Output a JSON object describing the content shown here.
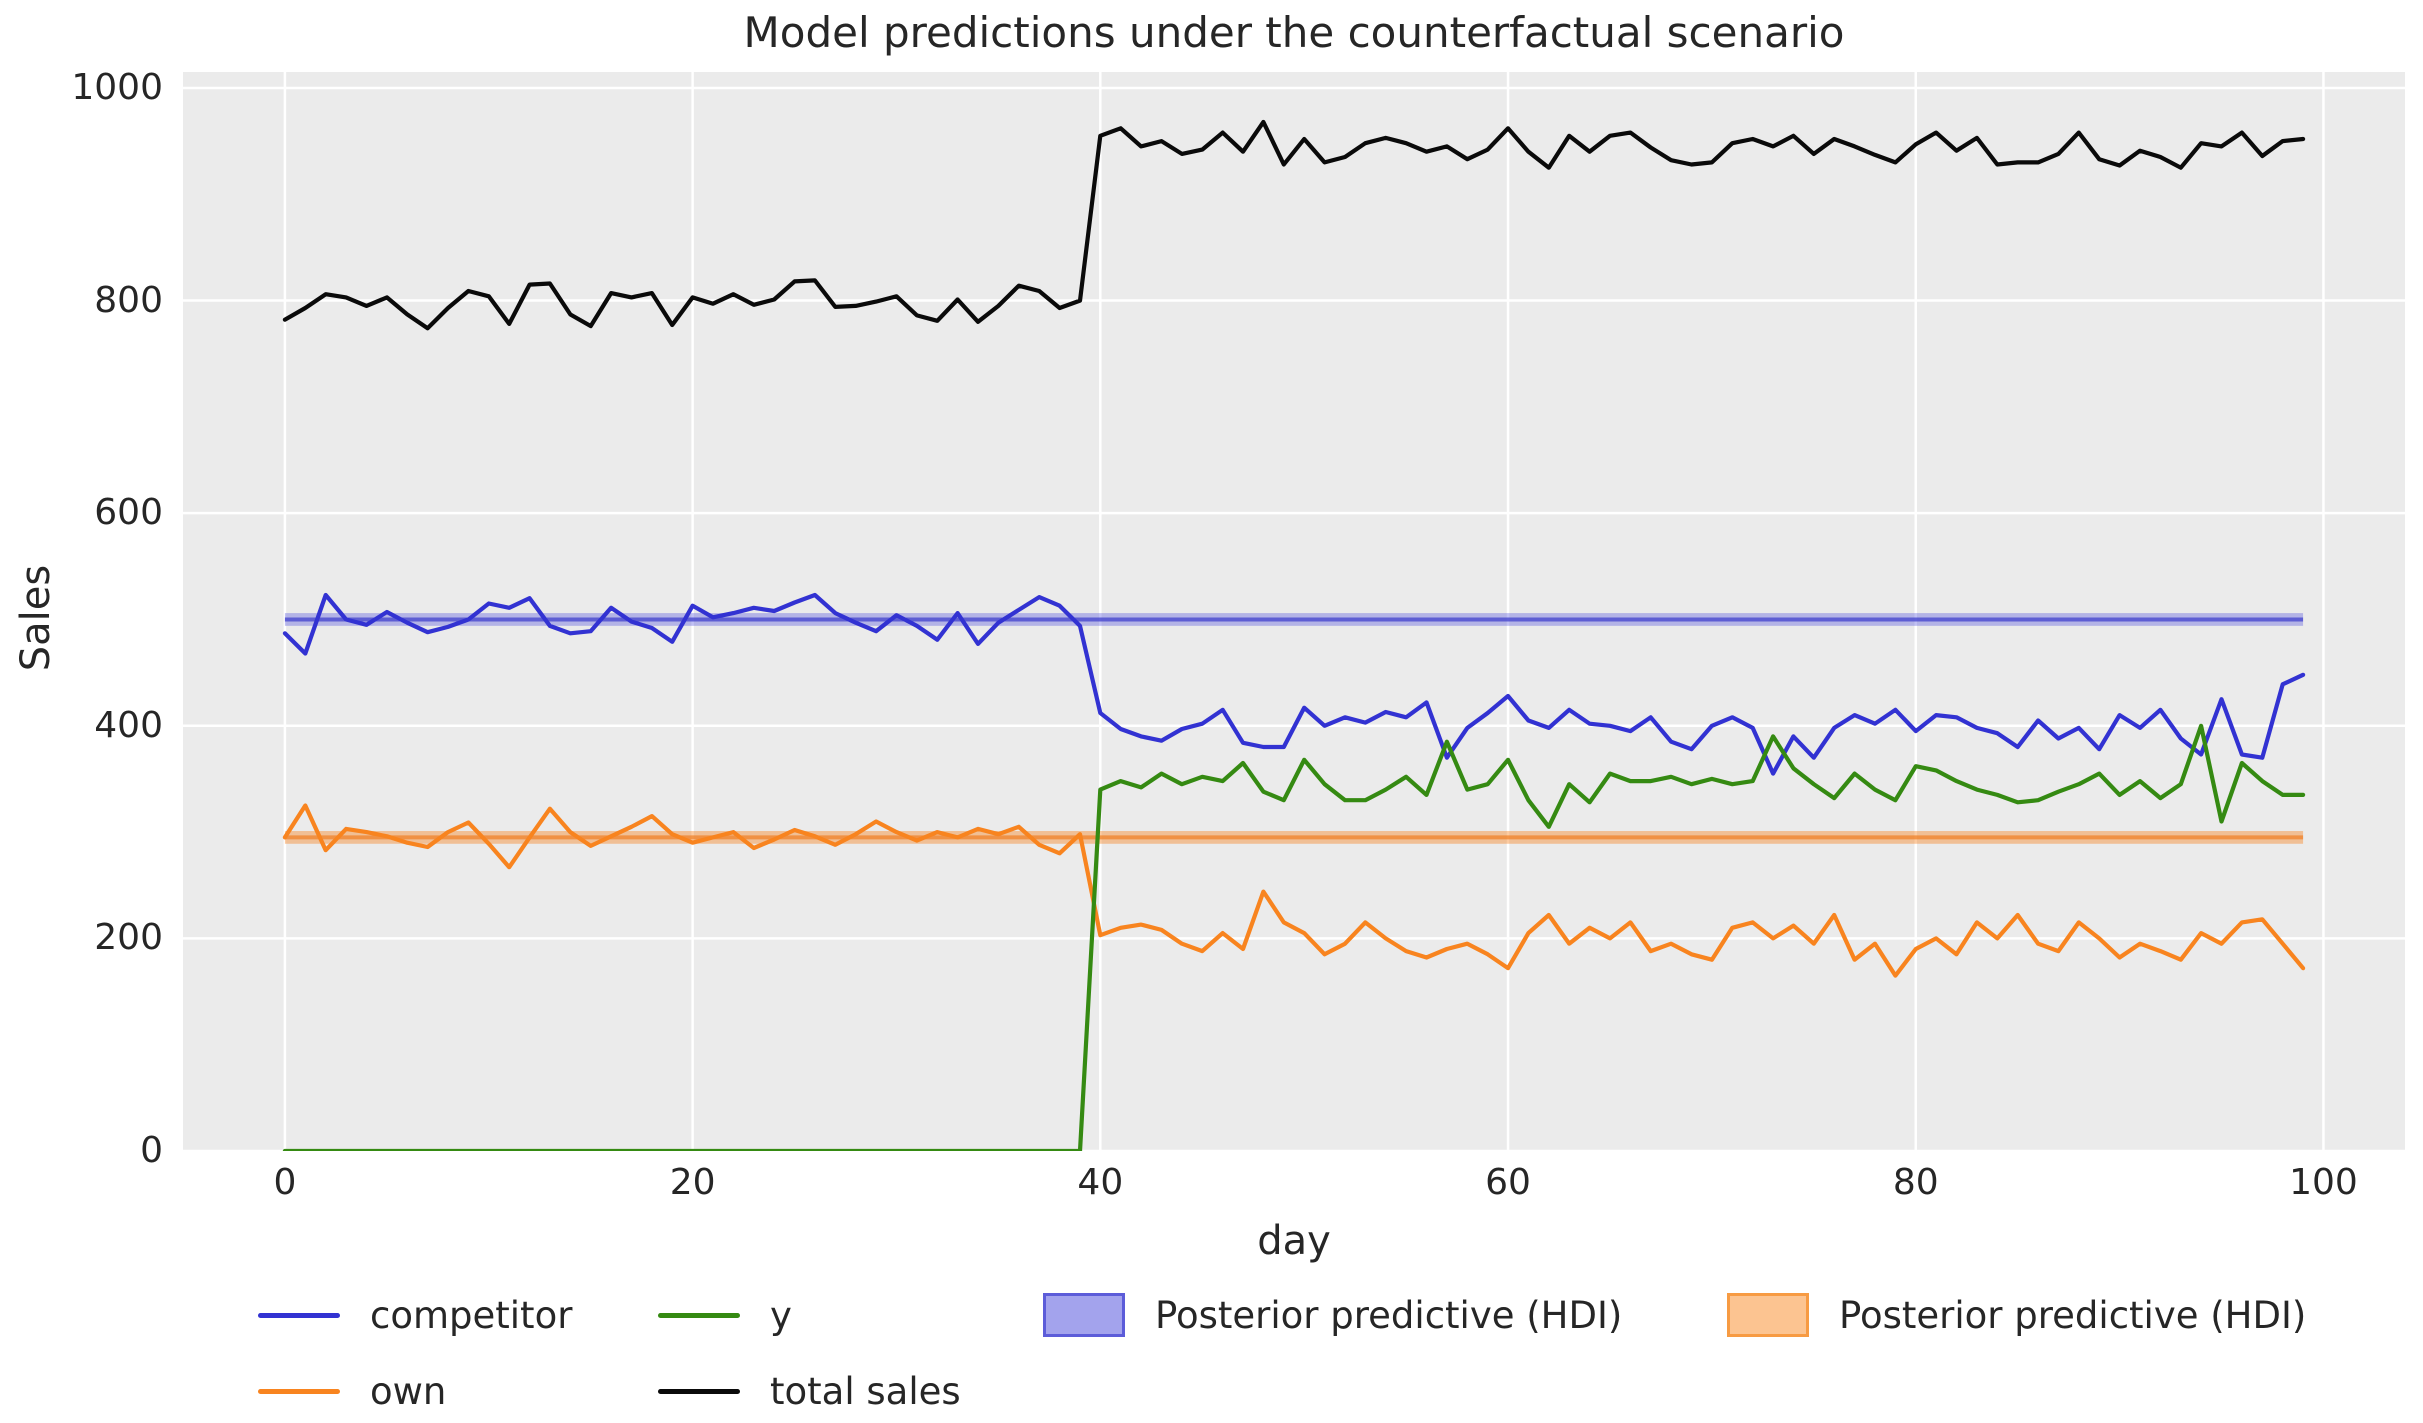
{
  "figure": {
    "background": "#ffffff",
    "plot_background": "#ebebeb",
    "grid_color": "#ffffff",
    "text_color": "#262626"
  },
  "chart_data": {
    "type": "line",
    "title": "Model predictions under the counterfactual scenario",
    "xlabel": "day",
    "ylabel": "Sales",
    "grid": true,
    "legend_position": "below",
    "xlim": [
      -5,
      104
    ],
    "ylim": [
      0,
      1015
    ],
    "x_ticks": [
      0,
      20,
      40,
      60,
      80,
      100
    ],
    "y_ticks": [
      0,
      200,
      400,
      600,
      800,
      1000
    ],
    "x": [
      0,
      1,
      2,
      3,
      4,
      5,
      6,
      7,
      8,
      9,
      10,
      11,
      12,
      13,
      14,
      15,
      16,
      17,
      18,
      19,
      20,
      21,
      22,
      23,
      24,
      25,
      26,
      27,
      28,
      29,
      30,
      31,
      32,
      33,
      34,
      35,
      36,
      37,
      38,
      39,
      40,
      41,
      42,
      43,
      44,
      45,
      46,
      47,
      48,
      49,
      50,
      51,
      52,
      53,
      54,
      55,
      56,
      57,
      58,
      59,
      60,
      61,
      62,
      63,
      64,
      65,
      66,
      67,
      68,
      69,
      70,
      71,
      72,
      73,
      74,
      75,
      76,
      77,
      78,
      79,
      80,
      81,
      82,
      83,
      84,
      85,
      86,
      87,
      88,
      89,
      90,
      91,
      92,
      93,
      94,
      95,
      96,
      97,
      98,
      99
    ],
    "series": [
      {
        "name": "competitor",
        "color": "#3232d2",
        "line_width": 4.2,
        "values": [
          487,
          468,
          523,
          500,
          495,
          507,
          497,
          488,
          493,
          500,
          515,
          511,
          520,
          494,
          487,
          489,
          511,
          498,
          492,
          479,
          513,
          502,
          506,
          511,
          508,
          516,
          523,
          506,
          497,
          489,
          504,
          494,
          481,
          506,
          477,
          497,
          509,
          521,
          513,
          494,
          412,
          397,
          390,
          386,
          397,
          402,
          415,
          384,
          380,
          380,
          417,
          400,
          408,
          403,
          413,
          408,
          422,
          370,
          398,
          412,
          428,
          405,
          398,
          415,
          402,
          400,
          395,
          408,
          385,
          378,
          400,
          408,
          398,
          355,
          390,
          370,
          398,
          410,
          402,
          415,
          395,
          410,
          408,
          398,
          393,
          380,
          405,
          388,
          398,
          378,
          410,
          398,
          415,
          388,
          373,
          425,
          373,
          370,
          439,
          448
        ]
      },
      {
        "name": "own",
        "color": "#f8841f",
        "line_width": 4.2,
        "values": [
          295,
          325,
          283,
          303,
          300,
          296,
          290,
          286,
          300,
          309,
          289,
          267,
          295,
          322,
          300,
          287,
          296,
          305,
          315,
          298,
          290,
          295,
          300,
          285,
          293,
          302,
          296,
          288,
          298,
          310,
          300,
          292,
          300,
          295,
          303,
          298,
          305,
          288,
          280,
          298,
          203,
          210,
          213,
          208,
          195,
          188,
          205,
          190,
          244,
          215,
          205,
          185,
          195,
          215,
          200,
          188,
          182,
          190,
          195,
          185,
          172,
          205,
          222,
          195,
          210,
          200,
          215,
          188,
          195,
          185,
          180,
          210,
          215,
          200,
          212,
          195,
          222,
          180,
          195,
          165,
          190,
          200,
          185,
          215,
          200,
          222,
          195,
          188,
          215,
          200,
          182,
          195,
          188,
          180,
          205,
          195,
          215,
          218,
          195,
          172
        ]
      },
      {
        "name": "y",
        "color": "#358a12",
        "line_width": 4.2,
        "values": [
          0,
          0,
          0,
          0,
          0,
          0,
          0,
          0,
          0,
          0,
          0,
          0,
          0,
          0,
          0,
          0,
          0,
          0,
          0,
          0,
          0,
          0,
          0,
          0,
          0,
          0,
          0,
          0,
          0,
          0,
          0,
          0,
          0,
          0,
          0,
          0,
          0,
          0,
          0,
          0,
          340,
          348,
          342,
          355,
          345,
          352,
          348,
          365,
          338,
          330,
          368,
          345,
          330,
          330,
          340,
          352,
          335,
          385,
          340,
          345,
          368,
          330,
          305,
          345,
          328,
          355,
          348,
          348,
          352,
          345,
          350,
          345,
          348,
          390,
          360,
          345,
          332,
          355,
          340,
          330,
          362,
          358,
          348,
          340,
          335,
          328,
          330,
          338,
          345,
          355,
          335,
          348,
          332,
          345,
          400,
          310,
          365,
          348,
          335,
          335
        ]
      },
      {
        "name": "total sales",
        "color": "#0a0a0a",
        "line_width": 4.2,
        "values": [
          782,
          793,
          806,
          803,
          795,
          803,
          787,
          774,
          793,
          809,
          804,
          778,
          815,
          816,
          787,
          776,
          807,
          803,
          807,
          777,
          803,
          797,
          806,
          796,
          801,
          818,
          819,
          794,
          795,
          799,
          804,
          786,
          781,
          801,
          780,
          795,
          814,
          809,
          793,
          800,
          955,
          962,
          945,
          950,
          938,
          942,
          958,
          940,
          968,
          928,
          952,
          930,
          935,
          948,
          953,
          948,
          940,
          945,
          933,
          942,
          962,
          940,
          925,
          955,
          940,
          955,
          958,
          944,
          932,
          928,
          930,
          948,
          952,
          945,
          955,
          938,
          952,
          945,
          937,
          930,
          947,
          958,
          941,
          953,
          928,
          930,
          930,
          938,
          958,
          933,
          927,
          941,
          935,
          925,
          948,
          945,
          958,
          936,
          950,
          952
        ]
      }
    ],
    "bands": [
      {
        "name": "Posterior predictive (HDI)",
        "mean": 500,
        "hdi": [
          494,
          506
        ],
        "fill_color": "#5a5ae0",
        "fill_opacity": 0.38,
        "mean_color": "#4040cc",
        "mean_opacity": 0.75
      },
      {
        "name": "Posterior predictive (HDI)",
        "mean": 295,
        "hdi": [
          289,
          301
        ],
        "fill_color": "#f8841f",
        "fill_opacity": 0.42,
        "mean_color": "#ef7d22",
        "mean_opacity": 0.7
      }
    ]
  },
  "legend": {
    "items": [
      {
        "label": "competitor",
        "handle": "line",
        "color": "#3232d2"
      },
      {
        "label": "y",
        "handle": "line",
        "color": "#358a12"
      },
      {
        "label": "Posterior predictive (HDI)",
        "handle": "patch",
        "fill": "#a3a3ed",
        "border": "#5c5cd9"
      },
      {
        "label": "Posterior predictive (HDI)",
        "handle": "patch",
        "fill": "#fcc491",
        "border": "#f79b43"
      },
      {
        "label": "own",
        "handle": "line",
        "color": "#f8841f"
      },
      {
        "label": "total sales",
        "handle": "line",
        "color": "#0a0a0a"
      }
    ]
  }
}
